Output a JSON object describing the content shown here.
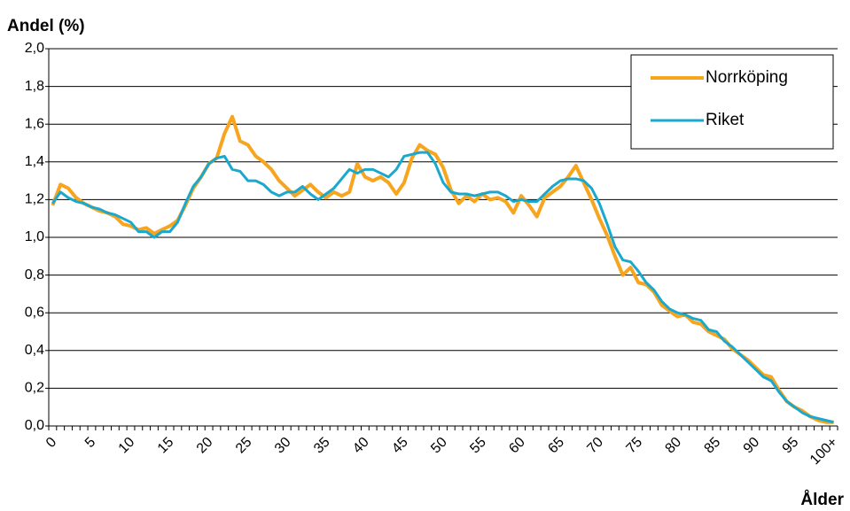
{
  "chart_data": {
    "type": "line",
    "y_label": "Andel (%)",
    "x_label": "Ålder",
    "categories": [
      "0",
      null,
      null,
      null,
      null,
      "5",
      null,
      null,
      null,
      null,
      "10",
      null,
      null,
      null,
      null,
      "15",
      null,
      null,
      null,
      null,
      "20",
      null,
      null,
      null,
      null,
      "25",
      null,
      null,
      null,
      null,
      "30",
      null,
      null,
      null,
      null,
      "35",
      null,
      null,
      null,
      null,
      "40",
      null,
      null,
      null,
      null,
      "45",
      null,
      null,
      null,
      null,
      "50",
      null,
      null,
      null,
      null,
      "55",
      null,
      null,
      null,
      null,
      "60",
      null,
      null,
      null,
      null,
      "65",
      null,
      null,
      null,
      null,
      "70",
      null,
      null,
      null,
      null,
      "75",
      null,
      null,
      null,
      null,
      "80",
      null,
      null,
      null,
      null,
      "85",
      null,
      null,
      null,
      null,
      "90",
      null,
      null,
      null,
      null,
      "95",
      null,
      null,
      null,
      null,
      "100+"
    ],
    "series": [
      {
        "name": "Norrköping",
        "color": "#f7a41e",
        "width": 4,
        "values": [
          1.17,
          1.28,
          1.26,
          1.21,
          1.18,
          1.16,
          1.14,
          1.13,
          1.11,
          1.07,
          1.06,
          1.04,
          1.05,
          1.02,
          1.04,
          1.06,
          1.09,
          1.17,
          1.26,
          1.32,
          1.39,
          1.42,
          1.55,
          1.64,
          1.51,
          1.49,
          1.43,
          1.4,
          1.36,
          1.3,
          1.26,
          1.22,
          1.25,
          1.28,
          1.24,
          1.21,
          1.24,
          1.22,
          1.24,
          1.39,
          1.32,
          1.3,
          1.32,
          1.29,
          1.23,
          1.29,
          1.42,
          1.49,
          1.46,
          1.44,
          1.37,
          1.25,
          1.18,
          1.22,
          1.19,
          1.23,
          1.2,
          1.21,
          1.19,
          1.13,
          1.22,
          1.17,
          1.11,
          1.21,
          1.24,
          1.27,
          1.32,
          1.38,
          1.29,
          1.2,
          1.1,
          1.01,
          0.9,
          0.8,
          0.84,
          0.76,
          0.75,
          0.71,
          0.64,
          0.61,
          0.58,
          0.59,
          0.55,
          0.54,
          0.5,
          0.48,
          0.46,
          0.41,
          0.38,
          0.35,
          0.31,
          0.27,
          0.26,
          0.19,
          0.13,
          0.1,
          0.08,
          0.05,
          0.03,
          0.02,
          0.02
        ]
      },
      {
        "name": "Riket",
        "color": "#1ba8cd",
        "width": 3,
        "values": [
          1.18,
          1.24,
          1.21,
          1.19,
          1.18,
          1.16,
          1.15,
          1.13,
          1.12,
          1.1,
          1.08,
          1.03,
          1.03,
          1.0,
          1.03,
          1.03,
          1.08,
          1.18,
          1.27,
          1.32,
          1.39,
          1.42,
          1.43,
          1.36,
          1.35,
          1.3,
          1.3,
          1.28,
          1.24,
          1.22,
          1.24,
          1.24,
          1.27,
          1.23,
          1.2,
          1.23,
          1.26,
          1.31,
          1.36,
          1.34,
          1.36,
          1.36,
          1.34,
          1.32,
          1.36,
          1.43,
          1.44,
          1.45,
          1.45,
          1.39,
          1.29,
          1.24,
          1.23,
          1.23,
          1.22,
          1.23,
          1.24,
          1.24,
          1.22,
          1.19,
          1.2,
          1.19,
          1.19,
          1.23,
          1.27,
          1.3,
          1.31,
          1.31,
          1.3,
          1.26,
          1.18,
          1.07,
          0.95,
          0.88,
          0.87,
          0.82,
          0.76,
          0.72,
          0.66,
          0.62,
          0.6,
          0.59,
          0.57,
          0.56,
          0.51,
          0.5,
          0.45,
          0.42,
          0.38,
          0.34,
          0.3,
          0.26,
          0.24,
          0.18,
          0.13,
          0.1,
          0.07,
          0.05,
          0.04,
          0.03,
          0.02
        ]
      }
    ],
    "ylim": [
      0,
      2
    ],
    "yticks": [
      {
        "value": 0,
        "label": "0,0"
      },
      {
        "value": 0.2,
        "label": "0,2"
      },
      {
        "value": 0.4,
        "label": "0,4"
      },
      {
        "value": 0.6,
        "label": "0,6"
      },
      {
        "value": 0.8,
        "label": "0,8"
      },
      {
        "value": 1.0,
        "label": "1,0"
      },
      {
        "value": 1.2,
        "label": "1,2"
      },
      {
        "value": 1.4,
        "label": "1,4"
      },
      {
        "value": 1.6,
        "label": "1,6"
      },
      {
        "value": 1.8,
        "label": "1,8"
      },
      {
        "value": 2.0,
        "label": "2,0"
      }
    ],
    "grid": true,
    "legend": "top-right"
  }
}
